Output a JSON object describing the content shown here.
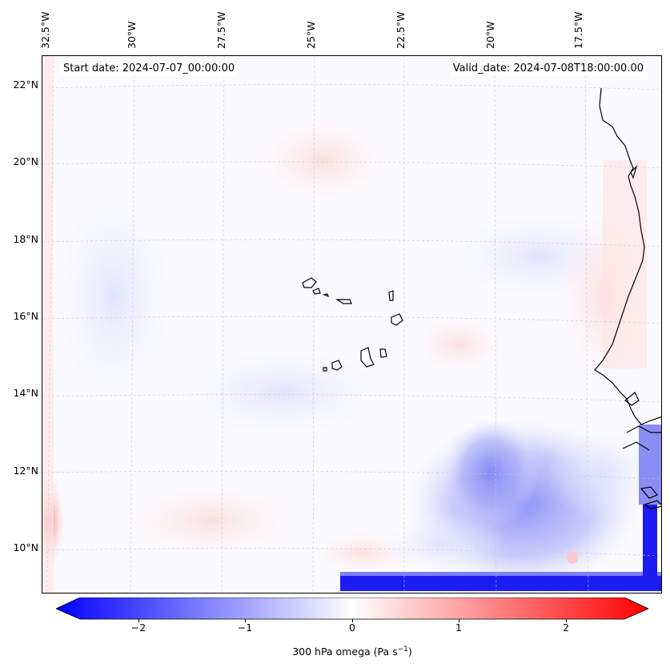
{
  "annotations": {
    "start_date": "Start date: 2024-07-07_00:00:00",
    "valid_date": "Valid_date: 2024-07-08T18:00:00.00"
  },
  "axes": {
    "lon_labels": [
      "32.5°W",
      "30°W",
      "27.5°W",
      "25°W",
      "22.5°W",
      "20°W",
      "17.5°W"
    ],
    "lat_labels": [
      "22°N",
      "20°N",
      "18°N",
      "16°N",
      "14°N",
      "12°N",
      "10°N"
    ]
  },
  "colorbar": {
    "label_prefix": "300 hPa omega (Pa s",
    "label_sup": "−1",
    "label_suffix": ")",
    "ticks": [
      "−2",
      "−1",
      "0",
      "1",
      "2"
    ],
    "range": [
      -2.6,
      2.6
    ],
    "colormap": "bwr",
    "color_min": "#0000ff",
    "color_mid": "#ffffff",
    "color_max": "#ff0000"
  },
  "map": {
    "field": "300 hPa omega",
    "features": [
      "coastline",
      "cape-verde-islands",
      "gridlines"
    ],
    "gridline_color": "#c8c8c8"
  }
}
